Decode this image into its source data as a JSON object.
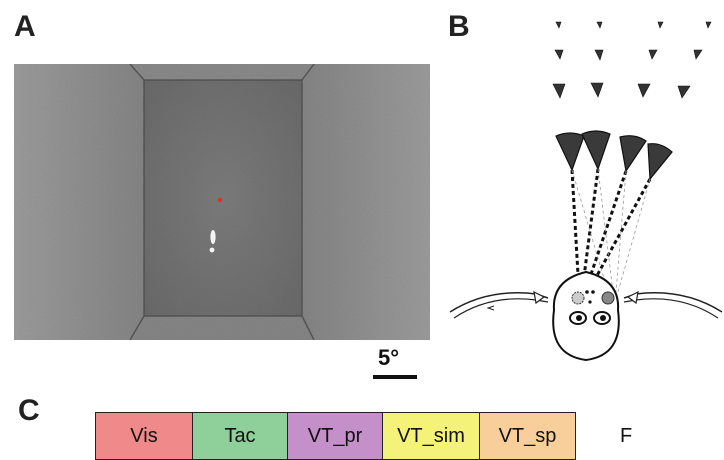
{
  "panel_labels": {
    "a": "A",
    "b": "B",
    "c": "C"
  },
  "scale_bar": {
    "label": "5°"
  },
  "conditions": [
    {
      "label": "Vis",
      "color": "#f08a8a"
    },
    {
      "label": "Tac",
      "color": "#8fcf9a"
    },
    {
      "label": "VT_pr",
      "color": "#c58fca"
    },
    {
      "label": "VT_sim",
      "color": "#f5f27a"
    },
    {
      "label": "VT_sp",
      "color": "#f8cf9a"
    }
  ],
  "extra_condition": {
    "label": "F"
  },
  "colors": {
    "arena_gray": "#8d8d8d",
    "arena_dark": "#5a5a5a",
    "fixation_dot": "#e0301e",
    "stimulus": "#ffffff"
  }
}
